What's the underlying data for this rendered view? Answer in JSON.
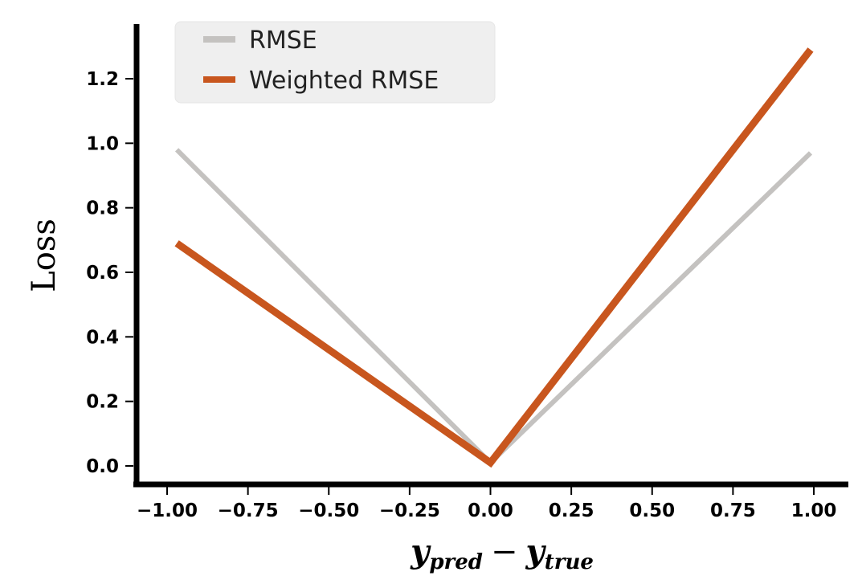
{
  "chart_data": {
    "type": "line",
    "title": "",
    "xlabel_base": "y",
    "xlabel_sub1": "pred",
    "xlabel_minus": "−",
    "xlabel_sub2": "true",
    "ylabel": "Loss",
    "xlim": [
      -1.1,
      1.1
    ],
    "ylim": [
      -0.05,
      1.37
    ],
    "xticks": [
      -1.0,
      -0.75,
      -0.5,
      -0.25,
      0.0,
      0.25,
      0.5,
      0.75,
      1.0
    ],
    "xtick_labels": [
      "−1.00",
      "−0.75",
      "−0.50",
      "−0.25",
      "0.00",
      "0.25",
      "0.50",
      "0.75",
      "1.00"
    ],
    "yticks": [
      0.0,
      0.2,
      0.4,
      0.6,
      0.8,
      1.0,
      1.2
    ],
    "ytick_labels": [
      "0.0",
      "0.2",
      "0.4",
      "0.6",
      "0.8",
      "1.0",
      "1.2"
    ],
    "legend_position": "top-left",
    "grid": false,
    "series": [
      {
        "name": "RMSE",
        "color": "#c4c2c0",
        "x": [
          -0.97,
          0.0,
          0.99
        ],
        "y": [
          0.98,
          0.01,
          0.97
        ]
      },
      {
        "name": "Weighted RMSE",
        "color": "#c8561e",
        "x": [
          -0.97,
          0.0,
          0.99
        ],
        "y": [
          0.69,
          0.01,
          1.29
        ]
      }
    ]
  }
}
